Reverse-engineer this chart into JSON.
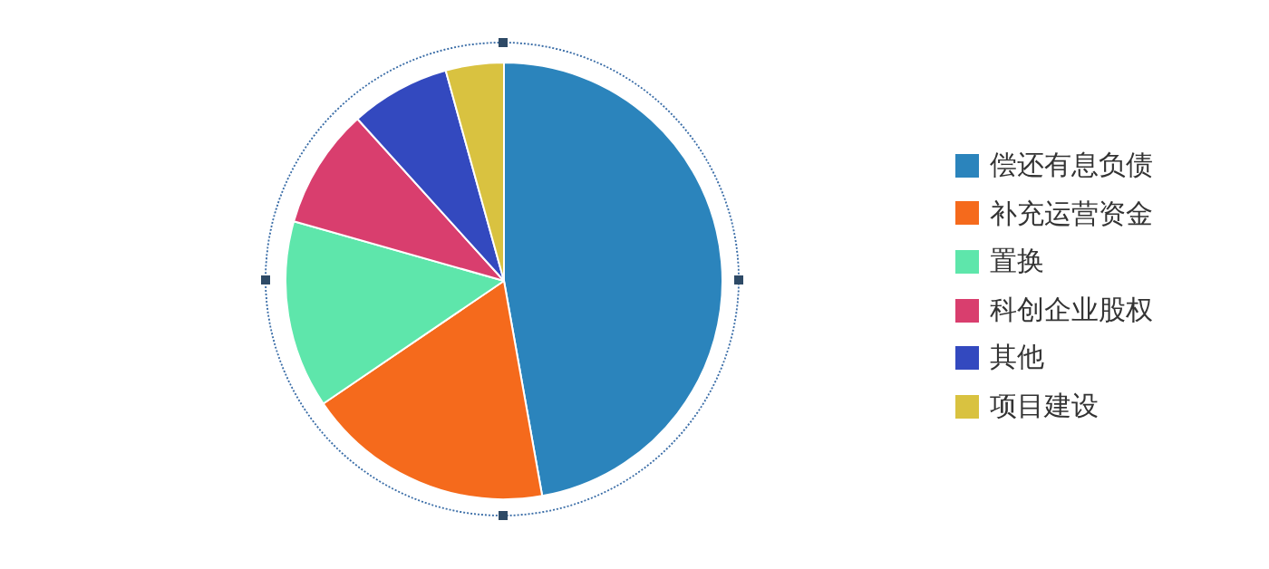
{
  "chart_data": {
    "type": "pie",
    "categories": [
      "偿还有息负债",
      "补充运营资金",
      "置换",
      "科创企业股权",
      "其他",
      "项目建设"
    ],
    "values": [
      47.2,
      18.3,
      13.9,
      8.9,
      7.4,
      4.3
    ],
    "colors": [
      "#2b84bc",
      "#f56a1c",
      "#5ee6ab",
      "#d93e6e",
      "#3349bf",
      "#d9c240"
    ],
    "legend": "right"
  }
}
